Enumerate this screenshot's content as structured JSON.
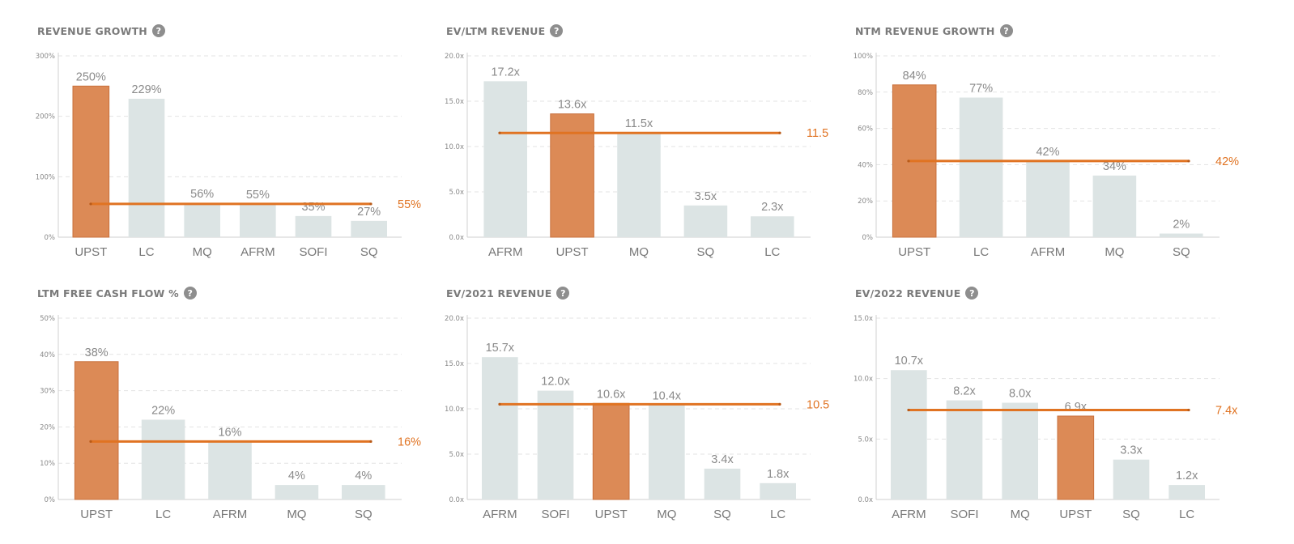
{
  "colors": {
    "highlight": "#dc8a56",
    "bar": "#dce4e4",
    "avg_line": "#e07322",
    "avg_label": "#e07322"
  },
  "help_icon": "question-icon",
  "chart_data": [
    {
      "type": "bar",
      "title": "REVENUE GROWTH",
      "categories": [
        "UPST",
        "LC",
        "MQ",
        "AFRM",
        "SOFI",
        "SQ"
      ],
      "values": [
        250,
        229,
        56,
        55,
        35,
        27
      ],
      "labels": [
        "250%",
        "229%",
        "56%",
        "55%",
        "35%",
        "27%"
      ],
      "highlight": "UPST",
      "ylim": [
        0,
        300
      ],
      "yticks": [
        "0%",
        "100%",
        "200%",
        "300%"
      ],
      "average": 55,
      "average_label": "55%",
      "grid": true
    },
    {
      "type": "bar",
      "title": "EV/LTM REVENUE",
      "categories": [
        "AFRM",
        "UPST",
        "MQ",
        "SQ",
        "LC"
      ],
      "values": [
        17.2,
        13.6,
        11.5,
        3.5,
        2.3
      ],
      "labels": [
        "17.2x",
        "13.6x",
        "11.5x",
        "3.5x",
        "2.3x"
      ],
      "highlight": "UPST",
      "ylim": [
        0,
        20
      ],
      "yticks": [
        "0.0x",
        "5.0x",
        "10.0x",
        "15.0x",
        "20.0x"
      ],
      "average": 11.5,
      "average_label": "11.5",
      "grid": true
    },
    {
      "type": "bar",
      "title": "NTM REVENUE GROWTH",
      "categories": [
        "UPST",
        "LC",
        "AFRM",
        "MQ",
        "SQ"
      ],
      "values": [
        84,
        77,
        42,
        34,
        2
      ],
      "labels": [
        "84%",
        "77%",
        "42%",
        "34%",
        "2%"
      ],
      "highlight": "UPST",
      "ylim": [
        0,
        100
      ],
      "yticks": [
        "0%",
        "20%",
        "40%",
        "60%",
        "80%",
        "100%"
      ],
      "average": 42,
      "average_label": "42%",
      "grid": true
    },
    {
      "type": "bar",
      "title": "LTM FREE CASH FLOW %",
      "categories": [
        "UPST",
        "LC",
        "AFRM",
        "MQ",
        "SQ"
      ],
      "values": [
        38,
        22,
        16,
        4,
        4
      ],
      "labels": [
        "38%",
        "22%",
        "16%",
        "4%",
        "4%"
      ],
      "highlight": "UPST",
      "ylim": [
        0,
        50
      ],
      "yticks": [
        "0%",
        "10%",
        "20%",
        "30%",
        "40%",
        "50%"
      ],
      "average": 16,
      "average_label": "16%",
      "grid": true
    },
    {
      "type": "bar",
      "title": "EV/2021 REVENUE",
      "categories": [
        "AFRM",
        "SOFI",
        "UPST",
        "MQ",
        "SQ",
        "LC"
      ],
      "values": [
        15.7,
        12.0,
        10.6,
        10.4,
        3.4,
        1.8
      ],
      "labels": [
        "15.7x",
        "12.0x",
        "10.6x",
        "10.4x",
        "3.4x",
        "1.8x"
      ],
      "highlight": "UPST",
      "ylim": [
        0,
        20
      ],
      "yticks": [
        "0.0x",
        "5.0x",
        "10.0x",
        "15.0x",
        "20.0x"
      ],
      "average": 10.5,
      "average_label": "10.5",
      "grid": true
    },
    {
      "type": "bar",
      "title": "EV/2022 REVENUE",
      "categories": [
        "AFRM",
        "SOFI",
        "MQ",
        "UPST",
        "SQ",
        "LC"
      ],
      "values": [
        10.7,
        8.2,
        8.0,
        6.9,
        3.3,
        1.2
      ],
      "labels": [
        "10.7x",
        "8.2x",
        "8.0x",
        "6.9x",
        "3.3x",
        "1.2x"
      ],
      "highlight": "UPST",
      "ylim": [
        0,
        15
      ],
      "yticks": [
        "0.0x",
        "5.0x",
        "10.0x",
        "15.0x"
      ],
      "average": 7.4,
      "average_label": "7.4x",
      "grid": true
    }
  ]
}
